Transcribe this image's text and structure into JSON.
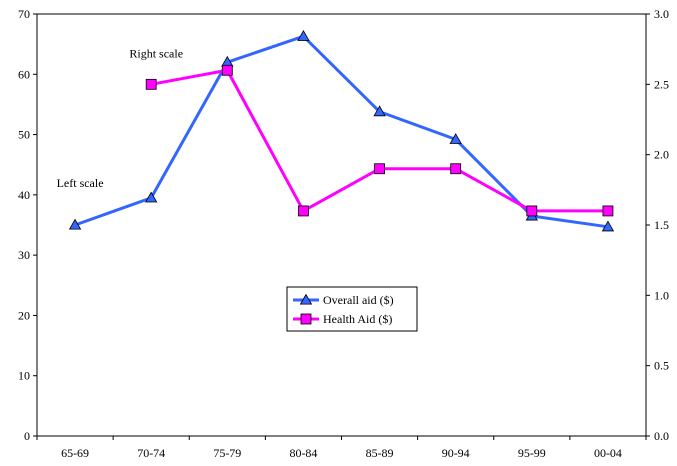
{
  "chart_data": {
    "type": "line",
    "categories": [
      "65-69",
      "70-74",
      "75-79",
      "80-84",
      "85-89",
      "90-94",
      "95-99",
      "00-04"
    ],
    "series": [
      {
        "name": "Overall aid ($)",
        "axis": "left",
        "color": "#3366FF",
        "marker": "triangle",
        "values": [
          35,
          39.5,
          62,
          66.3,
          53.8,
          49.2,
          36.5,
          34.7
        ]
      },
      {
        "name": "Health Aid ($)",
        "axis": "right",
        "color": "#FF00FF",
        "marker": "square",
        "values": [
          null,
          2.5,
          2.6,
          1.6,
          1.9,
          1.9,
          1.6,
          1.6
        ]
      }
    ],
    "left_axis": {
      "ylim": [
        0,
        70
      ],
      "ticks": [
        "0",
        "10",
        "20",
        "30",
        "40",
        "50",
        "60",
        "70"
      ],
      "tick_values": [
        0,
        10,
        20,
        30,
        40,
        50,
        60,
        70
      ]
    },
    "right_axis": {
      "ylim": [
        0,
        3.0
      ],
      "ticks": [
        "0.0",
        "0.5",
        "1.0",
        "1.5",
        "2.0",
        "2.5",
        "3.0"
      ],
      "tick_values": [
        0,
        0.5,
        1.0,
        1.5,
        2.0,
        2.5,
        3.0
      ]
    },
    "annotations": [
      {
        "text": "Right scale",
        "near_category": "70-74",
        "axis": "right",
        "value": 2.72
      },
      {
        "text": "Left scale",
        "near_category": "65-69",
        "axis": "left",
        "value": 42
      }
    ],
    "legend": {
      "placement": "center",
      "entries": [
        "Overall aid ($)",
        "Health Aid ($)"
      ]
    },
    "grid": false,
    "marker_fill_overall": "#3366FF",
    "marker_fill_health": "#FF00FF",
    "line_color_overall": "#3366FF",
    "line_color_health": "#FF00FF"
  }
}
